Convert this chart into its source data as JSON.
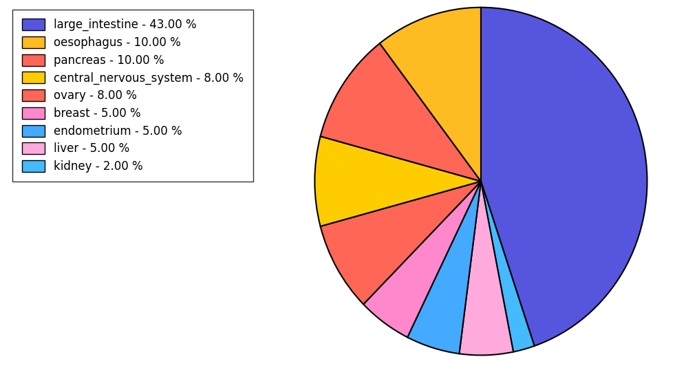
{
  "labels": [
    "large_intestine",
    "oesophagus",
    "pancreas",
    "central_nervous_system",
    "ovary",
    "breast",
    "endometrium",
    "liver",
    "kidney"
  ],
  "values": [
    43.0,
    10.0,
    10.0,
    8.0,
    8.0,
    5.0,
    5.0,
    5.0,
    2.0
  ],
  "colors": [
    "#5555dd",
    "#ffbb22",
    "#ff6655",
    "#ffcc00",
    "#ff6655",
    "#ff88cc",
    "#44aaff",
    "#ffaadd",
    "#44bbff"
  ],
  "legend_labels": [
    "large_intestine - 43.00 %",
    "oesophagus - 10.00 %",
    "pancreas - 10.00 %",
    "central_nervous_system - 8.00 %",
    "ovary - 8.00 %",
    "breast - 5.00 %",
    "endometrium - 5.00 %",
    "liver - 5.00 %",
    "kidney - 2.00 %"
  ],
  "background_color": "#ffffff",
  "legend_fontsize": 12,
  "figsize": [
    10.13,
    5.38
  ],
  "dpi": 100
}
